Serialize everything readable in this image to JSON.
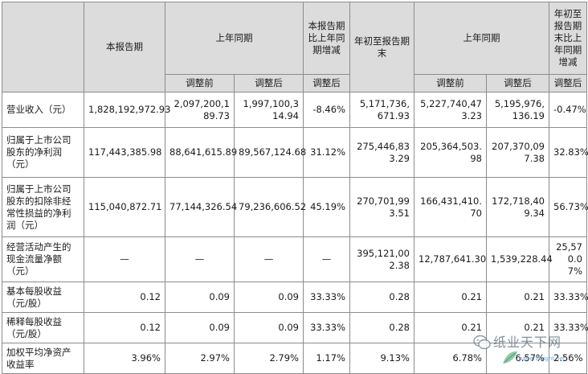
{
  "headers": {
    "current_period": "本报告期",
    "prior_period": "上年同期",
    "change_period": "本报告期比上年同期增减",
    "period_end": "年初至报告期末",
    "prior_period_2": "上年同期",
    "change_ytd": "年初至报告期末比上年同期增减",
    "before_adj": "调整前",
    "after_adj": "调整后",
    "after_adj_change": "调整后",
    "before_adj_2": "调整前",
    "after_adj_2": "调整后",
    "after_adj_change_2": "调整后"
  },
  "rows": [
    {
      "label": "营业收入（元）",
      "values": [
        "1,828,192,972.93",
        "2,097,200,189.73",
        "1,997,100,314.94",
        "-8.46%",
        "5,171,736,671.93",
        "5,227,740,473.23",
        "5,195,976,136.19",
        "-0.47%"
      ]
    },
    {
      "label": "归属于上市公司股东的净利润（元）",
      "values": [
        "117,443,385.98",
        "88,641,615.89",
        "89,567,124.68",
        "31.12%",
        "275,446,833.29",
        "205,364,503.98",
        "207,370,097.38",
        "32.83%"
      ]
    },
    {
      "label": "归属于上市公司股东的扣除非经常性损益的净利润（元）",
      "values": [
        "115,040,872.71",
        "77,144,326.54",
        "79,236,606.52",
        "45.19%",
        "270,701,993.51",
        "166,431,410.70",
        "172,718,409.34",
        "56.73%"
      ]
    },
    {
      "label": "经营活动产生的现金流量净额（元）",
      "values": [
        "—",
        "—",
        "—",
        "—",
        "395,121,002.38",
        "12,787,641.30",
        "1,539,228.44",
        "25,570.07%"
      ]
    },
    {
      "label": "基本每股收益（元/股）",
      "values": [
        "0.12",
        "0.09",
        "0.09",
        "33.33%",
        "0.28",
        "0.21",
        "0.21",
        "33.33%"
      ]
    },
    {
      "label": "稀释每股收益（元/股）",
      "values": [
        "0.12",
        "0.09",
        "0.09",
        "33.33%",
        "0.28",
        "0.21",
        "0.21",
        "33.33%"
      ]
    },
    {
      "label": "加权平均净资产收益率",
      "values": [
        "3.96%",
        "2.97%",
        "2.79%",
        "1.17%",
        "9.13%",
        "6.78%",
        "6.57%",
        "2.56%"
      ]
    }
  ],
  "watermark": {
    "text": "纸业天下网",
    "url": "paperinsight.net"
  }
}
